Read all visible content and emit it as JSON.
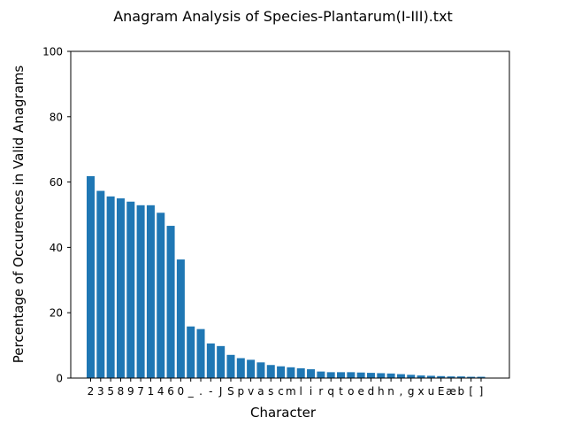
{
  "chart_data": {
    "type": "bar",
    "title": "Anagram Analysis of Species-Plantarum(I-III).txt",
    "xlabel": "Character",
    "ylabel": "Percentage of Occurences in Valid Anagrams",
    "ylim": [
      0,
      100
    ],
    "yticks": [
      "0",
      "20",
      "40",
      "60",
      "80",
      "100"
    ],
    "grid": false,
    "bar_color": "#1f77b4",
    "categories": [
      "2",
      "3",
      "5",
      "8",
      "9",
      "7",
      "1",
      "4",
      "6",
      "0",
      "_",
      ".",
      "-",
      "J",
      "S",
      "p",
      "v",
      "a",
      "s",
      "c",
      "m",
      "l",
      "i",
      "r",
      "q",
      "t",
      "o",
      "e",
      "d",
      "h",
      "n",
      ",",
      "g",
      "x",
      "u",
      "E",
      "æ",
      "b",
      "[",
      "]"
    ],
    "values": [
      61.8,
      57.3,
      55.6,
      55.0,
      54.0,
      52.9,
      52.9,
      50.6,
      46.6,
      36.3,
      15.8,
      15.0,
      10.6,
      9.8,
      7.1,
      6.1,
      5.6,
      4.8,
      4.0,
      3.6,
      3.3,
      3.0,
      2.7,
      2.0,
      1.8,
      1.8,
      1.8,
      1.7,
      1.6,
      1.5,
      1.4,
      1.2,
      1.0,
      0.8,
      0.7,
      0.6,
      0.5,
      0.5,
      0.4,
      0.4
    ]
  }
}
